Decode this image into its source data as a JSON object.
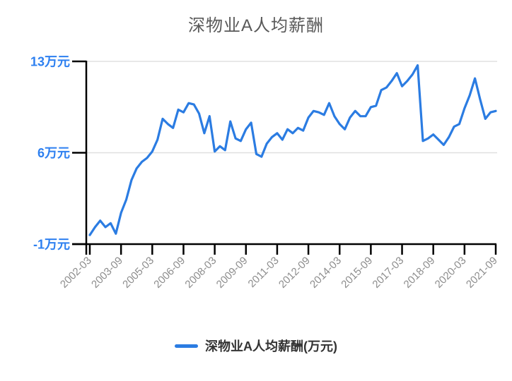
{
  "title": "深物业A人均薪酬",
  "legend": {
    "label": "深物业A人均薪酬(万元)"
  },
  "colors": {
    "line": "#2b7ce2",
    "y_axis_label": "#2e80f0",
    "x_axis_label": "#8c8c8c",
    "axis": "#000000",
    "gridline": "#e0e0e0",
    "title": "#595959",
    "legend_text": "#333333",
    "background": "#ffffff"
  },
  "chart_data": {
    "type": "line",
    "title": "深物业A人均薪酬",
    "xlabel": "",
    "ylabel": "万元",
    "ylim": [
      -1,
      13
    ],
    "grid": "horizontal gridlines at 6 and 13",
    "legend_position": "bottom",
    "y_ticks": [
      {
        "label": "13万元",
        "value": 13
      },
      {
        "label": "6万元",
        "value": 6
      },
      {
        "label": "-1万元",
        "value": -1
      }
    ],
    "x_tick_labels": [
      "2002-03",
      "2003-09",
      "2005-03",
      "2006-09",
      "2008-03",
      "2009-09",
      "2011-03",
      "2012-09",
      "2014-03",
      "2015-09",
      "2017-03",
      "2018-09",
      "2020-03",
      "2021-09"
    ],
    "series": [
      {
        "name": "深物业A人均薪酬(万元)",
        "color": "#2b7ce2",
        "x": [
          "2002-03",
          "2002-06",
          "2002-09",
          "2002-12",
          "2003-03",
          "2003-06",
          "2003-09",
          "2003-12",
          "2004-03",
          "2004-06",
          "2004-09",
          "2004-12",
          "2005-03",
          "2005-06",
          "2005-09",
          "2005-12",
          "2006-03",
          "2006-06",
          "2006-09",
          "2006-12",
          "2007-03",
          "2007-06",
          "2007-09",
          "2007-12",
          "2008-03",
          "2008-06",
          "2008-09",
          "2008-12",
          "2009-03",
          "2009-06",
          "2009-09",
          "2009-12",
          "2010-03",
          "2010-06",
          "2010-09",
          "2010-12",
          "2011-03",
          "2011-06",
          "2011-09",
          "2011-12",
          "2012-03",
          "2012-06",
          "2012-09",
          "2012-12",
          "2013-03",
          "2013-06",
          "2013-09",
          "2013-12",
          "2014-03",
          "2014-06",
          "2014-09",
          "2014-12",
          "2015-03",
          "2015-06",
          "2015-09",
          "2015-12",
          "2016-03",
          "2016-06",
          "2016-09",
          "2016-12",
          "2017-03",
          "2017-06",
          "2017-09",
          "2017-12",
          "2018-03",
          "2018-06",
          "2018-09",
          "2018-12",
          "2019-03",
          "2019-06",
          "2019-09",
          "2019-12",
          "2020-03",
          "2020-06",
          "2020-09",
          "2020-12",
          "2021-03",
          "2021-06",
          "2021-09"
        ],
        "values": [
          -0.3,
          0.3,
          0.8,
          0.3,
          0.6,
          -0.2,
          1.4,
          2.4,
          3.9,
          4.8,
          5.3,
          5.6,
          6.1,
          7.0,
          8.6,
          8.2,
          7.9,
          9.3,
          9.1,
          9.8,
          9.7,
          9.0,
          7.5,
          8.8,
          6.1,
          6.5,
          6.2,
          8.4,
          7.1,
          6.9,
          7.8,
          8.3,
          5.9,
          5.7,
          6.7,
          7.2,
          7.5,
          7.0,
          7.8,
          7.5,
          7.9,
          7.7,
          8.7,
          9.2,
          9.1,
          8.9,
          9.8,
          8.8,
          8.2,
          7.8,
          8.7,
          9.2,
          8.8,
          8.8,
          9.5,
          9.6,
          10.8,
          11.0,
          11.5,
          12.1,
          11.1,
          11.5,
          12.0,
          12.7,
          6.9,
          7.1,
          7.4,
          7.0,
          6.6,
          7.2,
          8.0,
          8.2,
          9.4,
          10.4,
          11.7,
          10.1,
          8.6,
          9.1,
          9.2
        ]
      }
    ]
  }
}
